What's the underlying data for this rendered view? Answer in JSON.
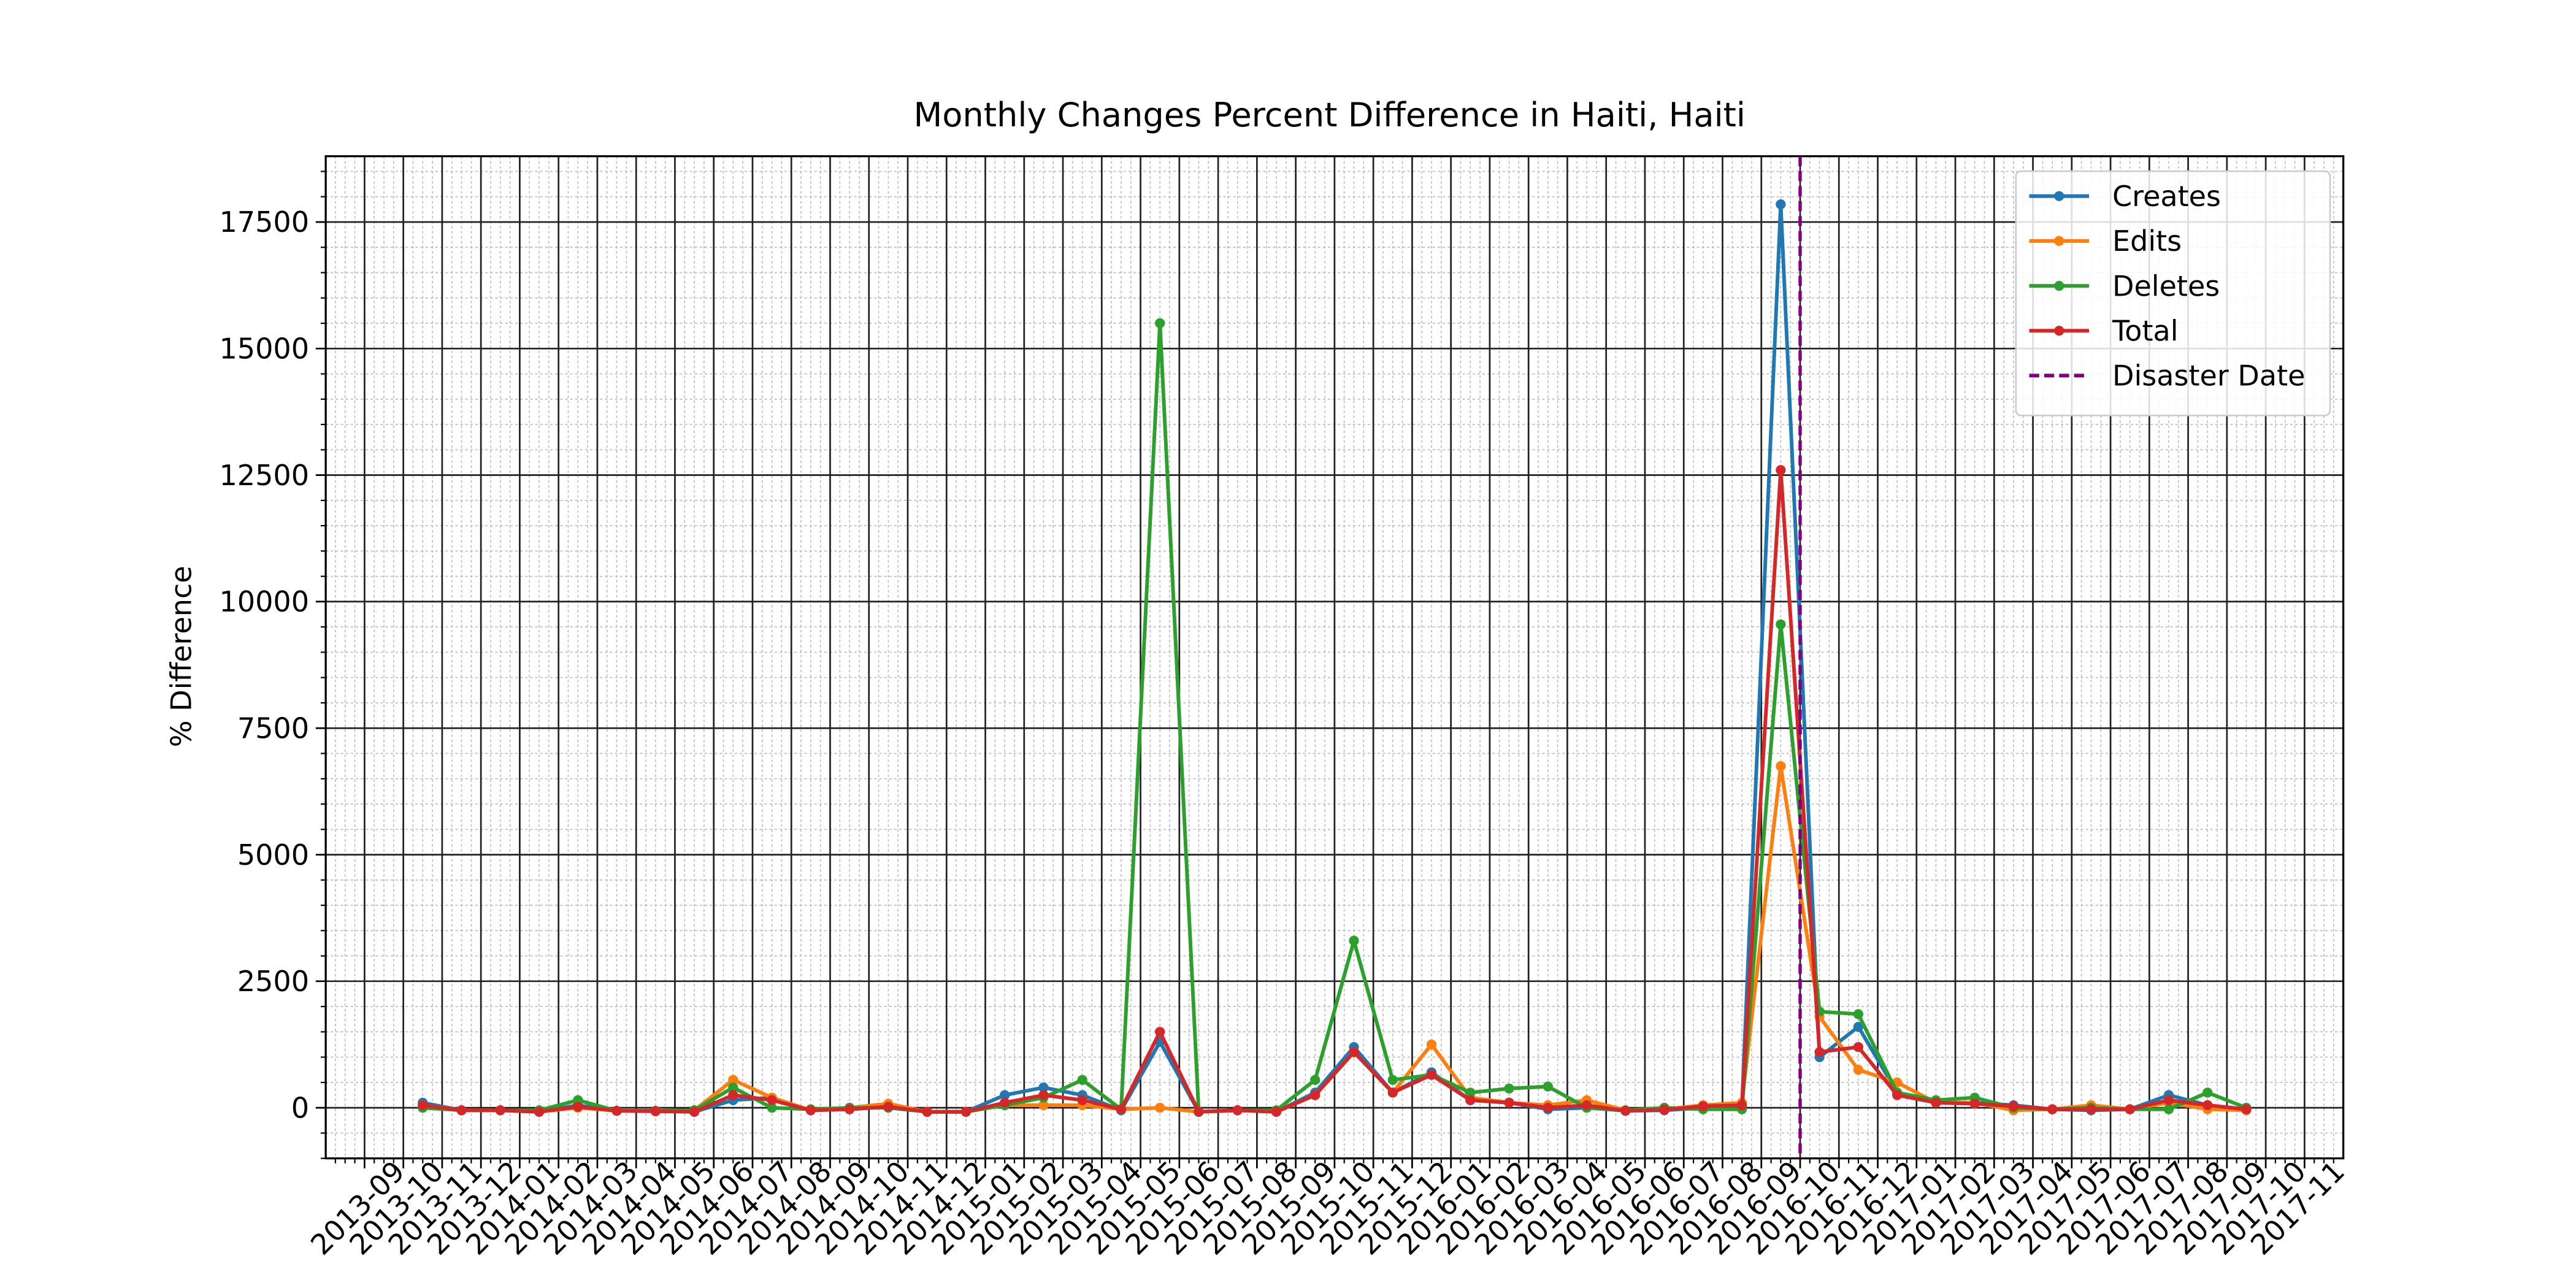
{
  "chart_data": {
    "type": "line",
    "title": "Monthly Changes Percent Difference in Haiti, Haiti",
    "ylabel": "% Difference",
    "x": [
      "2013-10",
      "2013-11",
      "2013-12",
      "2014-01",
      "2014-02",
      "2014-03",
      "2014-04",
      "2014-05",
      "2014-06",
      "2014-07",
      "2014-08",
      "2014-09",
      "2014-10",
      "2014-11",
      "2014-12",
      "2015-01",
      "2015-02",
      "2015-03",
      "2015-04",
      "2015-05",
      "2015-06",
      "2015-07",
      "2015-08",
      "2015-09",
      "2015-10",
      "2015-11",
      "2015-12",
      "2016-01",
      "2016-02",
      "2016-03",
      "2016-04",
      "2016-05",
      "2016-06",
      "2016-07",
      "2016-08",
      "2016-09",
      "2016-10",
      "2016-11",
      "2016-12",
      "2017-01",
      "2017-02",
      "2017-03",
      "2017-04",
      "2017-05",
      "2017-06",
      "2017-07",
      "2017-08",
      "2017-09"
    ],
    "series": [
      {
        "name": "Creates",
        "color": "#1f77b4",
        "values": [
          100,
          -50,
          -50,
          -80,
          50,
          -60,
          -60,
          -80,
          150,
          200,
          -50,
          -30,
          20,
          -80,
          -80,
          250,
          400,
          250,
          -50,
          1300,
          -80,
          -50,
          -80,
          300,
          1200,
          300,
          700,
          150,
          100,
          -30,
          0,
          -60,
          -50,
          0,
          50,
          17850,
          1000,
          1600,
          300,
          100,
          100,
          50,
          -30,
          -50,
          -30,
          250,
          50,
          -30
        ]
      },
      {
        "name": "Edits",
        "color": "#ff7f0e",
        "values": [
          50,
          -50,
          -50,
          -80,
          0,
          -60,
          -60,
          -50,
          550,
          200,
          -50,
          0,
          80,
          -80,
          -80,
          50,
          50,
          50,
          -30,
          0,
          -80,
          -50,
          -80,
          250,
          1100,
          300,
          1250,
          200,
          100,
          50,
          150,
          -50,
          -30,
          50,
          100,
          6750,
          1800,
          750,
          500,
          100,
          100,
          -50,
          -30,
          50,
          -30,
          100,
          -30,
          -50
        ]
      },
      {
        "name": "Deletes",
        "color": "#2ca02c",
        "values": [
          0,
          -50,
          -50,
          -50,
          150,
          -60,
          -60,
          -50,
          400,
          0,
          -30,
          0,
          0,
          -80,
          -80,
          50,
          200,
          550,
          -30,
          15500,
          -80,
          -50,
          -50,
          550,
          3300,
          550,
          650,
          300,
          380,
          420,
          0,
          -50,
          0,
          -30,
          -30,
          9550,
          1900,
          1850,
          300,
          150,
          200,
          0,
          -30,
          0,
          -30,
          -30,
          300,
          0
        ]
      },
      {
        "name": "Total",
        "color": "#d62728",
        "values": [
          50,
          -50,
          -50,
          -80,
          20,
          -60,
          -70,
          -80,
          250,
          150,
          -50,
          -30,
          20,
          -80,
          -80,
          100,
          250,
          150,
          -30,
          1500,
          -80,
          -50,
          -80,
          250,
          1100,
          300,
          650,
          150,
          100,
          0,
          50,
          -60,
          -40,
          30,
          50,
          12600,
          1100,
          1200,
          250,
          100,
          80,
          30,
          -30,
          -30,
          -30,
          150,
          50,
          -30
        ]
      }
    ],
    "vline": {
      "name": "Disaster Date",
      "x": "2016-10",
      "color": "#800080"
    },
    "xlim": [
      "2013-08",
      "2017-12"
    ],
    "xticks": [
      "2013-09",
      "2013-10",
      "2013-11",
      "2013-12",
      "2014-01",
      "2014-02",
      "2014-03",
      "2014-04",
      "2014-05",
      "2014-06",
      "2014-07",
      "2014-08",
      "2014-09",
      "2014-10",
      "2014-11",
      "2014-12",
      "2015-01",
      "2015-02",
      "2015-03",
      "2015-04",
      "2015-05",
      "2015-06",
      "2015-07",
      "2015-08",
      "2015-09",
      "2015-10",
      "2015-11",
      "2015-12",
      "2016-01",
      "2016-02",
      "2016-03",
      "2016-04",
      "2016-05",
      "2016-06",
      "2016-07",
      "2016-08",
      "2016-09",
      "2016-10",
      "2016-11",
      "2016-12",
      "2017-01",
      "2017-02",
      "2017-03",
      "2017-04",
      "2017-05",
      "2017-06",
      "2017-07",
      "2017-08",
      "2017-09",
      "2017-10",
      "2017-11"
    ],
    "ylim": [
      -1000,
      18800
    ],
    "yticks": [
      0,
      2500,
      5000,
      7500,
      10000,
      12500,
      15000,
      17500
    ],
    "grid": true,
    "minor_grid": true,
    "legend": "upper right"
  }
}
